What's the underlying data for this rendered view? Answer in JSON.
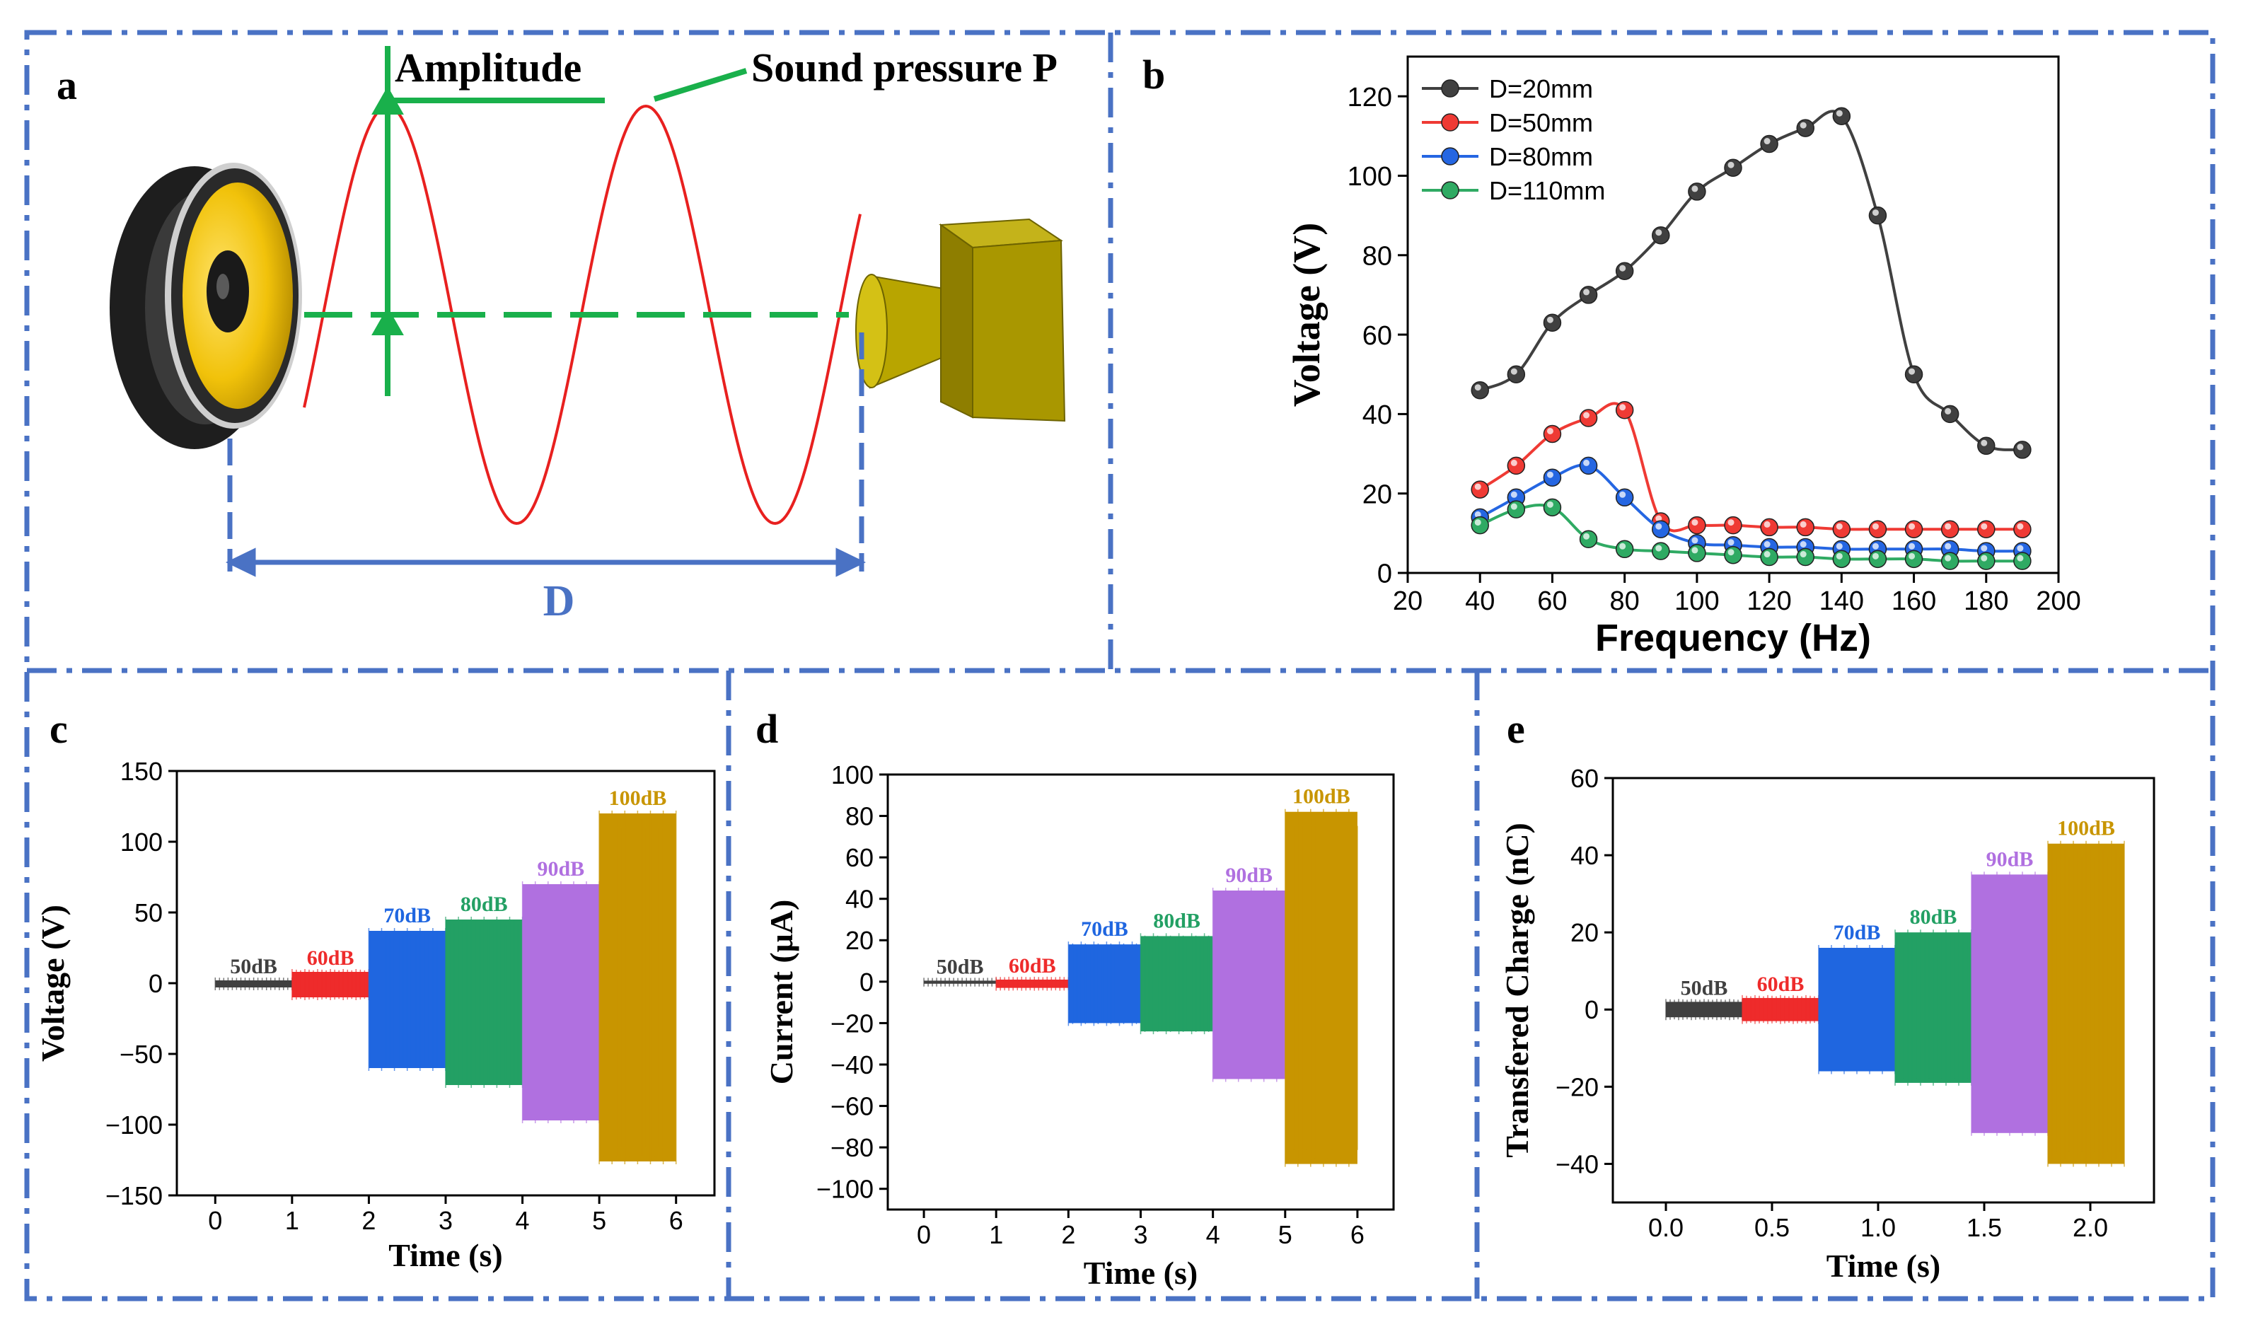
{
  "panels": {
    "a": {
      "letter": "a",
      "amplitude_label": "Amplitude",
      "pressure_label": "Sound pressure P",
      "distance_label": "D"
    },
    "b": {
      "letter": "b"
    },
    "c": {
      "letter": "c"
    },
    "d": {
      "letter": "d"
    },
    "e": {
      "letter": "e"
    }
  },
  "colors": {
    "frame": "#4a72c4",
    "sine": "#e8201f",
    "annot_green": "#19b04b",
    "dim_blue": "#4a72c4",
    "series": [
      "#404040",
      "#ef3a34",
      "#2566e2",
      "#2faa63"
    ],
    "levels": [
      "#404040",
      "#ee2b2b",
      "#1f66e0",
      "#23a064",
      "#b070e0",
      "#c89500"
    ]
  },
  "chart_data": [
    {
      "panel": "b",
      "type": "line",
      "title": "",
      "xlabel": "Frequency (Hz)",
      "ylabel": "Voltage (V)",
      "xlim": [
        20,
        200
      ],
      "ylim": [
        0,
        130
      ],
      "xticks": [
        20,
        40,
        60,
        80,
        100,
        120,
        140,
        160,
        180,
        200
      ],
      "yticks": [
        0,
        20,
        40,
        60,
        80,
        100,
        120
      ],
      "legend_position": "top-left",
      "series": [
        {
          "name": "D=20mm",
          "x": [
            40,
            50,
            60,
            70,
            80,
            90,
            100,
            110,
            120,
            130,
            140,
            150,
            160,
            170,
            180,
            190
          ],
          "y": [
            46,
            50,
            63,
            70,
            76,
            85,
            96,
            102,
            108,
            112,
            115,
            90,
            50,
            40,
            32,
            31
          ]
        },
        {
          "name": "D=50mm",
          "x": [
            40,
            50,
            60,
            70,
            80,
            90,
            100,
            110,
            120,
            130,
            140,
            150,
            160,
            170,
            180,
            190
          ],
          "y": [
            21,
            27,
            35,
            39,
            41,
            13,
            12,
            12,
            11.5,
            11.5,
            11,
            11,
            11,
            11,
            11,
            11
          ]
        },
        {
          "name": "D=80mm",
          "x": [
            40,
            50,
            60,
            70,
            80,
            90,
            100,
            110,
            120,
            130,
            140,
            150,
            160,
            170,
            180,
            190
          ],
          "y": [
            14,
            19,
            24,
            27,
            19,
            11,
            7.5,
            7,
            6.5,
            6.5,
            6,
            6,
            6,
            6,
            5.5,
            5.5
          ]
        },
        {
          "name": "D=110mm",
          "x": [
            40,
            50,
            60,
            70,
            80,
            90,
            100,
            110,
            120,
            130,
            140,
            150,
            160,
            170,
            180,
            190
          ],
          "y": [
            12,
            16,
            16.5,
            8.5,
            6,
            5.5,
            5,
            4.5,
            4,
            4,
            3.5,
            3.5,
            3.5,
            3,
            3,
            3
          ]
        }
      ]
    },
    {
      "panel": "c",
      "type": "area",
      "xlabel": "Time (s)",
      "ylabel": "Voltage (V)",
      "xlim": [
        -0.5,
        6.5
      ],
      "ylim": [
        -150,
        150
      ],
      "xticks": [
        0,
        1,
        2,
        3,
        4,
        5,
        6
      ],
      "yticks": [
        -150,
        -100,
        -50,
        0,
        50,
        100,
        150
      ],
      "bands": [
        {
          "label": "50dB",
          "x0": 0,
          "x1": 1,
          "low": -3,
          "high": 2
        },
        {
          "label": "60dB",
          "x0": 1,
          "x1": 2,
          "low": -10,
          "high": 8
        },
        {
          "label": "70dB",
          "x0": 2,
          "x1": 3,
          "low": -60,
          "high": 37
        },
        {
          "label": "80dB",
          "x0": 3,
          "x1": 4,
          "low": -72,
          "high": 45
        },
        {
          "label": "90dB",
          "x0": 4,
          "x1": 5,
          "low": -97,
          "high": 70
        },
        {
          "label": "100dB",
          "x0": 5,
          "x1": 6,
          "low": -126,
          "high": 120
        }
      ]
    },
    {
      "panel": "d",
      "type": "area",
      "xlabel": "Time (s)",
      "ylabel": "Current (μA)",
      "xlim": [
        -0.5,
        6.5
      ],
      "ylim": [
        -110,
        100
      ],
      "xticks": [
        0,
        1,
        2,
        3,
        4,
        5,
        6
      ],
      "yticks": [
        -100,
        -80,
        -60,
        -40,
        -20,
        0,
        20,
        40,
        60,
        80,
        100
      ],
      "bands": [
        {
          "label": "50dB",
          "x0": 0,
          "x1": 1,
          "low": -1,
          "high": 0.5
        },
        {
          "label": "60dB",
          "x0": 1,
          "x1": 2,
          "low": -3,
          "high": 1
        },
        {
          "label": "70dB",
          "x0": 2,
          "x1": 3,
          "low": -20,
          "high": 18
        },
        {
          "label": "80dB",
          "x0": 3,
          "x1": 4,
          "low": -24,
          "high": 22
        },
        {
          "label": "90dB",
          "x0": 4,
          "x1": 5,
          "low": -47,
          "high": 44
        },
        {
          "label": "100dB",
          "x0": 5,
          "x1": 6,
          "low": -88,
          "high": 82
        }
      ]
    },
    {
      "panel": "e",
      "type": "area",
      "xlabel": "Time (s)",
      "ylabel": "Transfered Charge (nC)",
      "xlim": [
        -0.25,
        2.3
      ],
      "ylim": [
        -50,
        60
      ],
      "xticks": [
        0.0,
        0.5,
        1.0,
        1.5,
        2.0
      ],
      "xtick_labels": [
        "0.0",
        "0.5",
        "1.0",
        "1.5",
        "2.0"
      ],
      "yticks": [
        -40,
        -20,
        0,
        20,
        40,
        60
      ],
      "bands": [
        {
          "label": "50dB",
          "x0": 0.0,
          "x1": 0.36,
          "low": -2,
          "high": 2
        },
        {
          "label": "60dB",
          "x0": 0.36,
          "x1": 0.72,
          "low": -3,
          "high": 3
        },
        {
          "label": "70dB",
          "x0": 0.72,
          "x1": 1.08,
          "low": -16,
          "high": 16
        },
        {
          "label": "80dB",
          "x0": 1.08,
          "x1": 1.44,
          "low": -19,
          "high": 20
        },
        {
          "label": "90dB",
          "x0": 1.44,
          "x1": 1.8,
          "low": -32,
          "high": 35
        },
        {
          "label": "100dB",
          "x0": 1.8,
          "x1": 2.16,
          "low": -40,
          "high": 43
        }
      ]
    }
  ]
}
